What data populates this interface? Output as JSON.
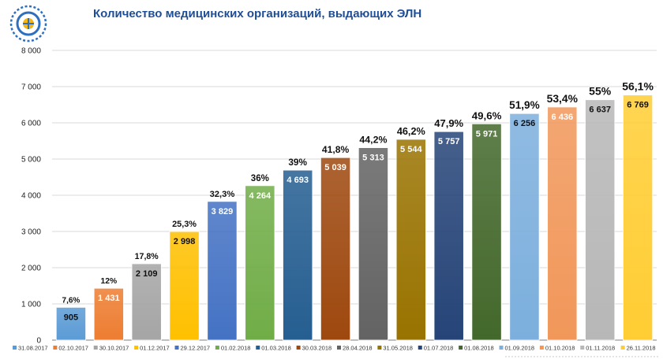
{
  "chart_data": {
    "type": "bar",
    "title": "Количество медицинских организаций, выдающих ЭЛН",
    "ylim": [
      0,
      8000
    ],
    "yticks": [
      "0",
      "1 000",
      "2 000",
      "3 000",
      "4 000",
      "5 000",
      "6 000",
      "7 000",
      "8 000"
    ],
    "categories": [
      "31.08.2017",
      "02.10.2017",
      "30.10.2017",
      "01.12.2017",
      "29.12.2017",
      "01.02.2018",
      "01.03.2018",
      "30.03.2018",
      "28.04.2018",
      "31.05.2018",
      "01.07.2018",
      "01.08.2018",
      "01.09.2018",
      "01.10.2018",
      "01.11.2018",
      "26.11.2018"
    ],
    "values": [
      905,
      1431,
      2109,
      2998,
      3829,
      4264,
      4693,
      5039,
      5313,
      5544,
      5757,
      5971,
      6256,
      6436,
      6637,
      6769
    ],
    "value_labels": [
      "905",
      "1 431",
      "2 109",
      "2 998",
      "3 829",
      "4 264",
      "4 693",
      "5 039",
      "5 313",
      "5 544",
      "5 757",
      "5 971",
      "6 256",
      "6 436",
      "6 637",
      "6 769"
    ],
    "percent_labels": [
      "7,6%",
      "12%",
      "17,8%",
      "25,3%",
      "32,3%",
      "36%",
      "39%",
      "41,8%",
      "44,2%",
      "46,2%",
      "47,9%",
      "49,6%",
      "51,9%",
      "53,4%",
      "55%",
      "56,1%"
    ],
    "colors": [
      "#5b9bd5",
      "#ed7d31",
      "#a5a5a5",
      "#ffc000",
      "#4472c4",
      "#70ad47",
      "#255e91",
      "#9e480e",
      "#636363",
      "#997300",
      "#264478",
      "#43682b",
      "#7cafdd",
      "#f1975a",
      "#b7b7b7",
      "#ffcd33"
    ],
    "label_colors": [
      "#111111",
      "#ffffff",
      "#111111",
      "#111111",
      "#ffffff",
      "#ffffff",
      "#ffffff",
      "#ffffff",
      "#ffffff",
      "#ffffff",
      "#ffffff",
      "#ffffff",
      "#111111",
      "#ffffff",
      "#111111",
      "#111111"
    ],
    "legend_position": "bottom"
  }
}
